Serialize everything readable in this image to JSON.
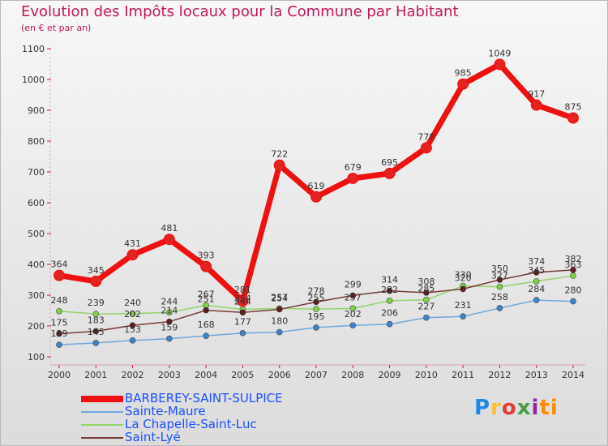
{
  "header": {
    "title": "Evolution des Impôts locaux pour la Commune par Habitant",
    "subtitle": "(en € et par an)"
  },
  "logo": {
    "text": "Proxiti",
    "letters": [
      "P",
      "r",
      "o",
      "x",
      "i",
      "ti"
    ]
  },
  "chart_data": {
    "type": "line",
    "title": "Evolution des Impôts locaux pour la Commune par Habitant",
    "subtitle": "(en € et par an)",
    "xlabel": "",
    "ylabel": "",
    "ylim": [
      100,
      1100
    ],
    "yticks": [
      100,
      200,
      300,
      400,
      500,
      600,
      700,
      800,
      900,
      1000,
      1100
    ],
    "grid": false,
    "legend_position": "bottom-left",
    "x": [
      "2000",
      "2001",
      "2002",
      "2003",
      "2004",
      "2005",
      "2006",
      "2007",
      "2008",
      "2009",
      "2010",
      "2011",
      "2012",
      "2013",
      "2014"
    ],
    "series": [
      {
        "name": "BARBEREY-SAINT-SULPICE",
        "color": "#ee1111",
        "marker_color": "#e52222",
        "bold": true,
        "values": [
          364,
          345,
          431,
          481,
          393,
          281,
          722,
          619,
          679,
          695,
          778,
          985,
          1049,
          917,
          875
        ],
        "labels": [
          "364",
          "345",
          "431",
          "481",
          "393",
          "281",
          "722",
          "619",
          "679",
          "695",
          "778",
          "985",
          "1049",
          "917",
          "875"
        ]
      },
      {
        "name": "Sainte-Maure",
        "color": "#6fa8dc",
        "marker_color": "#3d85c6",
        "bold": false,
        "values": [
          139,
          145,
          153,
          159,
          168,
          177,
          180,
          195,
          202,
          206,
          227,
          231,
          258,
          284,
          280
        ],
        "labels": [
          "139",
          "145",
          "153",
          "159",
          "168",
          "177",
          "180",
          "195",
          "202",
          "206",
          "227",
          "231",
          "258",
          "284",
          "280"
        ]
      },
      {
        "name": "La Chapelle-Saint-Luc",
        "color": "#93d46a",
        "marker_color": "#7ed348",
        "bold": false,
        "values": [
          248,
          239,
          240,
          244,
          267,
          254,
          257,
          255,
          257,
          282,
          285,
          330,
          327,
          345,
          363
        ],
        "labels": [
          "248",
          "239",
          "240",
          "244",
          "267",
          "254",
          "257",
          "255",
          "257",
          "282",
          "285",
          "330",
          "327",
          "345",
          "363"
        ]
      },
      {
        "name": "Saint-Lyé",
        "color": "#7a3b3b",
        "marker_color": "#5c1e1e",
        "bold": false,
        "values": [
          175,
          183,
          202,
          214,
          251,
          244,
          254,
          278,
          299,
          314,
          308,
          320,
          350,
          374,
          382
        ],
        "labels": [
          "175",
          "183",
          "202",
          "214",
          "251",
          "244",
          "254",
          "278",
          "299",
          "314",
          "308",
          "320",
          "350",
          "374",
          "382"
        ]
      }
    ]
  }
}
